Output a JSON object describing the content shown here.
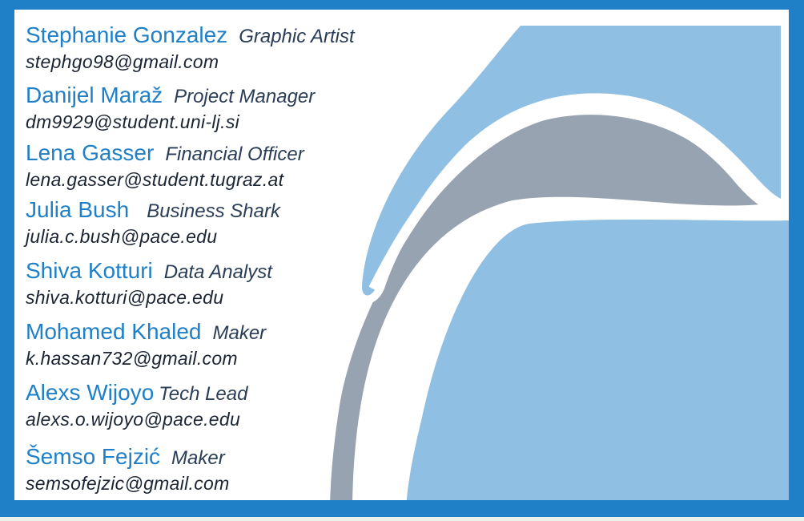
{
  "colors": {
    "frame": "#1f7fc7",
    "name": "#1f7fc7",
    "role": "#2a3d57",
    "email": "#1b2433",
    "light_blue": "#8fbfe3",
    "gray": "#97a3b0"
  },
  "members": [
    {
      "name": "Stephanie Gonzalez",
      "role": "Graphic Artist",
      "email": "stephgo98@gmail.com"
    },
    {
      "name": "Danijel Maraž",
      "role": "Project Manager",
      "email": "dm9929@student.uni-lj.si"
    },
    {
      "name": "Lena Gasser",
      "role": "Financial Officer",
      "email": "lena.gasser@student.tugraz.at"
    },
    {
      "name": "Julia Bush",
      "role": "Business Shark",
      "email": "julia.c.bush@pace.edu"
    },
    {
      "name": "Shiva Kotturi",
      "role": "Data Analyst",
      "email": "shiva.kotturi@pace.edu"
    },
    {
      "name": "Mohamed Khaled",
      "role": "Maker",
      "email": "k.hassan732@gmail.com"
    },
    {
      "name": "Alexs Wijoyo",
      "role": "Tech Lead",
      "email": "alexs.o.wijoyo@pace.edu"
    },
    {
      "name": "Šemso Fejzić",
      "role": "Maker",
      "email": "semsofejzic@gmail.com"
    }
  ]
}
